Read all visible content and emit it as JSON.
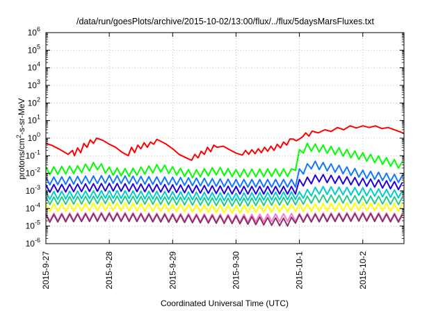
{
  "chart_data": {
    "type": "line",
    "title": "/data/run/goesPlots/archive/2015-10-02/13:00/flux/../flux/5daysMarsFluxes.txt",
    "xlabel": "Coordinated Universal Time (UTC)",
    "ylabel_parts": {
      "pre": "protons/cm",
      "sup": "2",
      "post": "-s-sr-MeV"
    },
    "yscale": "log",
    "ylim": [
      1e-06,
      1000000.0
    ],
    "y_tick_exponents": [
      -6,
      -5,
      -4,
      -3,
      -2,
      -1,
      0,
      1,
      2,
      3,
      4,
      5,
      6
    ],
    "y_tick_base": "10",
    "xlim_days": [
      0,
      5.65
    ],
    "x_ticks": [
      {
        "label": "2015-9-27",
        "day": 0
      },
      {
        "label": "2015-9-28",
        "day": 1
      },
      {
        "label": "2015-9-29",
        "day": 2
      },
      {
        "label": "2015-9-30",
        "day": 3
      },
      {
        "label": "2015-10-1",
        "day": 4
      },
      {
        "label": "2015-10-2",
        "day": 5
      }
    ],
    "grid": true,
    "legend": "none",
    "sawtooth_period_days": 0.125,
    "series": [
      {
        "color": "#ff0000",
        "points": [
          [
            0,
            0.5
          ],
          [
            0.1,
            0.38
          ],
          [
            0.2,
            0.25
          ],
          [
            0.28,
            0.17
          ],
          [
            0.35,
            0.12
          ],
          [
            0.42,
            0.2
          ],
          [
            0.45,
            0.1
          ],
          [
            0.5,
            0.28
          ],
          [
            0.55,
            0.15
          ],
          [
            0.6,
            0.5
          ],
          [
            0.65,
            0.3
          ],
          [
            0.7,
            0.8
          ],
          [
            0.75,
            0.5
          ],
          [
            0.8,
            1.0
          ],
          [
            0.9,
            0.75
          ],
          [
            1.0,
            0.45
          ],
          [
            1.1,
            0.3
          ],
          [
            1.2,
            0.16
          ],
          [
            1.3,
            0.1
          ],
          [
            1.35,
            0.3
          ],
          [
            1.4,
            0.15
          ],
          [
            1.45,
            0.4
          ],
          [
            1.5,
            0.25
          ],
          [
            1.55,
            0.55
          ],
          [
            1.6,
            0.3
          ],
          [
            1.65,
            0.6
          ],
          [
            1.7,
            0.45
          ],
          [
            1.75,
            0.85
          ],
          [
            1.8,
            0.7
          ],
          [
            1.9,
            0.45
          ],
          [
            2.0,
            0.25
          ],
          [
            2.1,
            0.12
          ],
          [
            2.2,
            0.08
          ],
          [
            2.3,
            0.055
          ],
          [
            2.35,
            0.12
          ],
          [
            2.4,
            0.075
          ],
          [
            2.45,
            0.18
          ],
          [
            2.5,
            0.12
          ],
          [
            2.55,
            0.3
          ],
          [
            2.6,
            0.17
          ],
          [
            2.65,
            0.4
          ],
          [
            2.7,
            0.3
          ],
          [
            2.8,
            0.35
          ],
          [
            2.9,
            0.22
          ],
          [
            3.0,
            0.14
          ],
          [
            3.1,
            0.11
          ],
          [
            3.15,
            0.2
          ],
          [
            3.2,
            0.12
          ],
          [
            3.25,
            0.22
          ],
          [
            3.3,
            0.13
          ],
          [
            3.35,
            0.25
          ],
          [
            3.4,
            0.15
          ],
          [
            3.45,
            0.3
          ],
          [
            3.5,
            0.18
          ],
          [
            3.55,
            0.35
          ],
          [
            3.6,
            0.2
          ],
          [
            3.65,
            0.45
          ],
          [
            3.7,
            0.28
          ],
          [
            3.75,
            0.6
          ],
          [
            3.8,
            0.4
          ],
          [
            3.85,
            0.9
          ],
          [
            3.9,
            0.9
          ],
          [
            3.95,
            0.7
          ],
          [
            4.0,
            0.9
          ],
          [
            4.05,
            1.2
          ],
          [
            4.1,
            2.0
          ],
          [
            4.15,
            1.3
          ],
          [
            4.2,
            2.5
          ],
          [
            4.3,
            2.0
          ],
          [
            4.4,
            3.0
          ],
          [
            4.5,
            2.4
          ],
          [
            4.6,
            4.0
          ],
          [
            4.7,
            3.0
          ],
          [
            4.8,
            5.0
          ],
          [
            4.9,
            3.8
          ],
          [
            5.0,
            5.0
          ],
          [
            5.1,
            4.0
          ],
          [
            5.2,
            5.0
          ],
          [
            5.3,
            3.5
          ],
          [
            5.4,
            4.0
          ],
          [
            5.5,
            3.0
          ],
          [
            5.6,
            2.2
          ],
          [
            5.65,
            1.8
          ]
        ]
      },
      {
        "color": "#00ff00",
        "points": [
          [
            0,
            0.015
          ],
          [
            0.5,
            0.018
          ],
          [
            0.8,
            0.03
          ],
          [
            1.0,
            0.015
          ],
          [
            1.3,
            0.012
          ],
          [
            1.8,
            0.022
          ],
          [
            2.3,
            0.01
          ],
          [
            2.7,
            0.015
          ],
          [
            3.0,
            0.011
          ],
          [
            3.5,
            0.012
          ],
          [
            3.9,
            0.012
          ],
          [
            3.95,
            0.035
          ],
          [
            4.0,
            0.15
          ],
          [
            4.1,
            0.35
          ],
          [
            4.3,
            0.3
          ],
          [
            4.6,
            0.2
          ],
          [
            5.0,
            0.1
          ],
          [
            5.3,
            0.06
          ],
          [
            5.65,
            0.03
          ]
        ]
      },
      {
        "color": "#1177ff",
        "points": [
          [
            0,
            0.004
          ],
          [
            1.0,
            0.005
          ],
          [
            2.0,
            0.004
          ],
          [
            3.0,
            0.003
          ],
          [
            3.95,
            0.003
          ],
          [
            4.0,
            0.012
          ],
          [
            4.2,
            0.035
          ],
          [
            4.6,
            0.02
          ],
          [
            5.0,
            0.01
          ],
          [
            5.65,
            0.005
          ]
        ]
      },
      {
        "color": "#2200dd",
        "points": [
          [
            0,
            0.0015
          ],
          [
            1.0,
            0.0018
          ],
          [
            2.0,
            0.0015
          ],
          [
            3.0,
            0.0012
          ],
          [
            3.95,
            0.0012
          ],
          [
            4.0,
            0.003
          ],
          [
            4.3,
            0.006
          ],
          [
            5.0,
            0.0035
          ],
          [
            5.65,
            0.002
          ]
        ]
      },
      {
        "color": "#00cccc",
        "points": [
          [
            0,
            0.0006
          ],
          [
            1.0,
            0.0007
          ],
          [
            2.0,
            0.0006
          ],
          [
            3.0,
            0.0005
          ],
          [
            4.0,
            0.0006
          ],
          [
            4.3,
            0.0012
          ],
          [
            5.0,
            0.001
          ],
          [
            5.65,
            0.0007
          ]
        ]
      },
      {
        "color": "#22cc88",
        "points": [
          [
            0,
            0.0003
          ],
          [
            1.0,
            0.00035
          ],
          [
            2.0,
            0.0003
          ],
          [
            3.0,
            0.00025
          ],
          [
            4.0,
            0.0003
          ],
          [
            4.3,
            0.0004
          ],
          [
            5.0,
            0.00035
          ],
          [
            5.65,
            0.0003
          ]
        ]
      },
      {
        "color": "#ffff00",
        "points": [
          [
            0,
            0.00012
          ],
          [
            1.0,
            0.00014
          ],
          [
            2.0,
            0.00012
          ],
          [
            3.0,
            0.0001
          ],
          [
            4.0,
            0.00012
          ],
          [
            5.0,
            0.00014
          ],
          [
            5.65,
            0.00012
          ]
        ]
      },
      {
        "color": "#ff77cc",
        "points": [
          [
            0,
            3.5e-05
          ],
          [
            1.0,
            4e-05
          ],
          [
            2.0,
            3.5e-05
          ],
          [
            3.0,
            3e-05
          ],
          [
            4.0,
            3.5e-05
          ],
          [
            5.0,
            4e-05
          ],
          [
            5.65,
            3.5e-05
          ]
        ]
      },
      {
        "color": "#883366",
        "points": [
          [
            0,
            3e-05
          ],
          [
            1.0,
            3.5e-05
          ],
          [
            2.0,
            3e-05
          ],
          [
            3.0,
            2.5e-05
          ],
          [
            3.85,
            1.8e-05
          ],
          [
            3.9,
            2.5e-05
          ],
          [
            4.0,
            3e-05
          ],
          [
            5.0,
            3.5e-05
          ],
          [
            5.65,
            3e-05
          ]
        ]
      }
    ]
  }
}
